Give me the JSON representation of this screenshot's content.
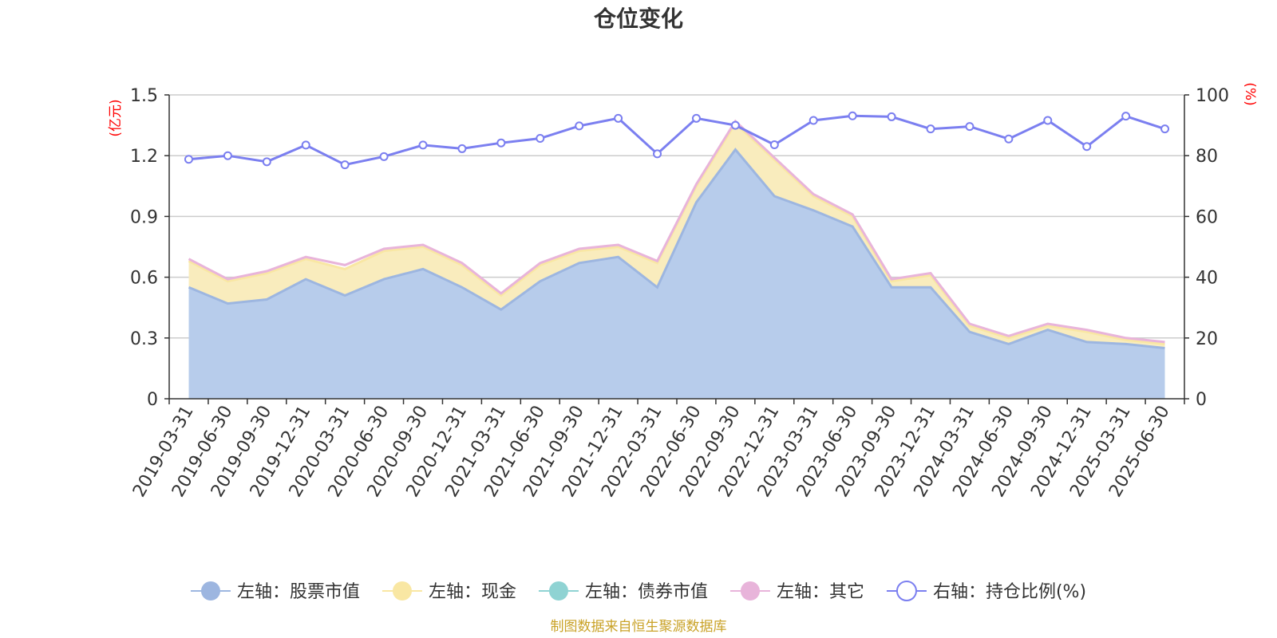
{
  "colors": {
    "stock": "#9db6e0",
    "stock_fill": "#b7cceb",
    "cash": "#f9e7a3",
    "cash_fill": "#f9ecbd",
    "bond": "#8fd3d3",
    "other": "#e8b4da",
    "ratio": "#7b7ff0",
    "axis": "#333333",
    "grid": "#cccccc",
    "unit": "#ff0000",
    "source": "#c9a227"
  },
  "chart_data": {
    "type": "area",
    "title": "仓位变化",
    "left_unit": "(亿元)",
    "right_unit": "(%)",
    "left_ylim": [
      0,
      1.5
    ],
    "left_ticks": [
      "0",
      "0.3",
      "0.6",
      "0.9",
      "1.2",
      "1.5"
    ],
    "right_ylim": [
      0,
      100
    ],
    "right_ticks": [
      "0",
      "20",
      "40",
      "60",
      "80",
      "100"
    ],
    "grid": true,
    "legend_position": "bottom",
    "categories": [
      "2019-03-31",
      "2019-06-30",
      "2019-09-30",
      "2019-12-31",
      "2020-03-31",
      "2020-06-30",
      "2020-09-30",
      "2020-12-31",
      "2021-03-31",
      "2021-06-30",
      "2021-09-30",
      "2021-12-31",
      "2022-03-31",
      "2022-06-30",
      "2022-09-30",
      "2022-12-31",
      "2023-03-31",
      "2023-06-30",
      "2023-09-30",
      "2023-12-31",
      "2024-03-31",
      "2024-06-30",
      "2024-09-30",
      "2024-12-31",
      "2025-03-31",
      "2025-06-30"
    ],
    "series": [
      {
        "name": "左轴：股票市值",
        "axis": "left",
        "stack": true,
        "values": [
          0.55,
          0.47,
          0.49,
          0.59,
          0.51,
          0.59,
          0.64,
          0.55,
          0.44,
          0.58,
          0.67,
          0.7,
          0.55,
          0.97,
          1.23,
          1.0,
          0.93,
          0.85,
          0.55,
          0.55,
          0.33,
          0.27,
          0.34,
          0.28,
          0.27,
          0.25
        ]
      },
      {
        "name": "左轴：现金",
        "axis": "left",
        "stack": true,
        "values": [
          0.13,
          0.11,
          0.13,
          0.1,
          0.13,
          0.14,
          0.11,
          0.11,
          0.07,
          0.08,
          0.06,
          0.05,
          0.12,
          0.08,
          0.13,
          0.18,
          0.07,
          0.05,
          0.03,
          0.06,
          0.03,
          0.03,
          0.02,
          0.05,
          0.02,
          0.02
        ]
      },
      {
        "name": "左轴：债券市值",
        "axis": "left",
        "stack": true,
        "values": [
          0,
          0,
          0,
          0,
          0,
          0,
          0,
          0,
          0,
          0,
          0,
          0,
          0,
          0,
          0,
          0,
          0,
          0,
          0,
          0,
          0,
          0,
          0,
          0,
          0,
          0
        ]
      },
      {
        "name": "左轴：其它",
        "axis": "left",
        "stack": true,
        "values": [
          0.01,
          0.01,
          0.01,
          0.01,
          0.02,
          0.01,
          0.01,
          0.01,
          0.01,
          0.01,
          0.01,
          0.01,
          0.01,
          0.01,
          0.01,
          0.01,
          0.01,
          0.01,
          0.01,
          0.01,
          0.01,
          0.01,
          0.01,
          0.01,
          0.01,
          0.01
        ]
      },
      {
        "name": "右轴：持仓比例(%)",
        "axis": "right",
        "type": "line",
        "values": [
          78.8,
          80.0,
          78.0,
          83.5,
          77.0,
          79.7,
          83.5,
          82.3,
          84.2,
          85.7,
          89.8,
          92.3,
          80.6,
          92.3,
          90.0,
          83.6,
          91.6,
          93.1,
          92.8,
          88.8,
          89.6,
          85.5,
          91.6,
          83.0,
          93.0,
          88.8
        ]
      }
    ]
  },
  "footer": {
    "source": "制图数据来自恒生聚源数据库"
  }
}
